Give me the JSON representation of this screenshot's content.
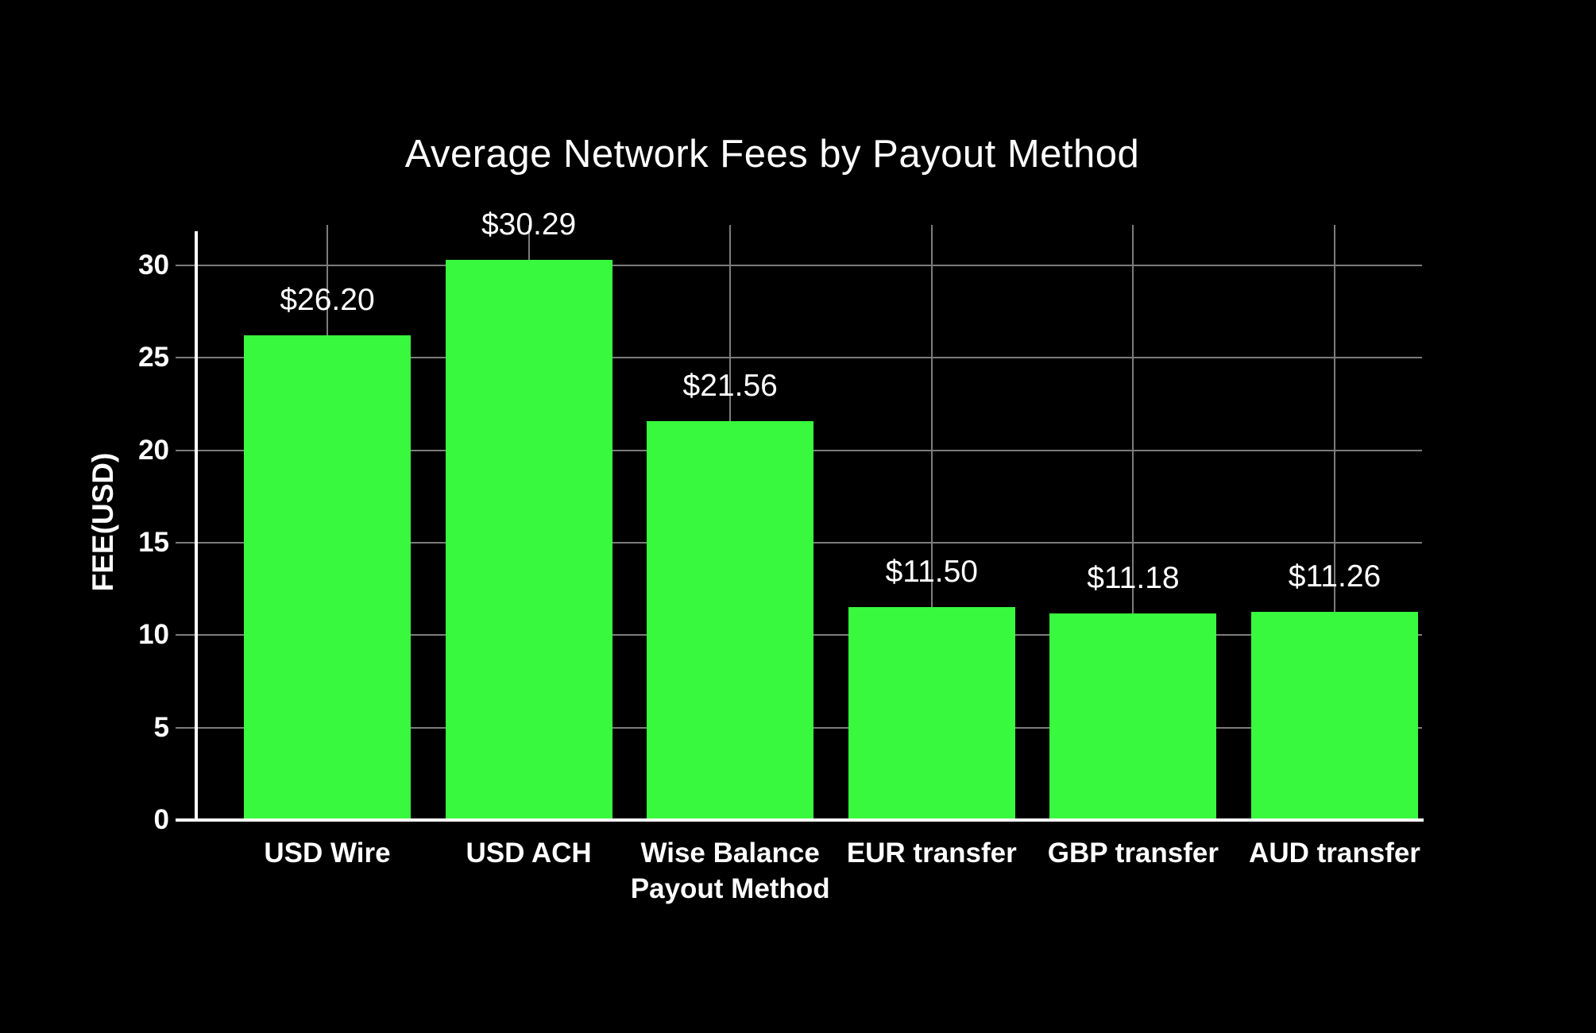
{
  "title": "Average Network Fees by Payout Method",
  "chart_data": {
    "type": "bar",
    "title": "Average Network Fees by Payout Method",
    "xlabel": "",
    "ylabel": "FEE(USD)",
    "categories": [
      "USD Wire",
      "USD ACH",
      "Wise Balance Payout Method",
      "EUR transfer",
      "GBP transfer",
      "AUD transfer"
    ],
    "values": [
      26.2,
      30.29,
      21.56,
      11.5,
      11.18,
      11.26
    ],
    "value_labels": [
      "$26.20",
      "$30.29",
      "$21.56",
      "$11.50",
      "$11.18",
      "$11.26"
    ],
    "y_ticks": [
      0,
      5,
      10,
      15,
      20,
      25,
      30
    ],
    "ylim": [
      0,
      32.2
    ],
    "grid": true,
    "legend": "none",
    "colors": {
      "background": "#000000",
      "bar": "#38F93D",
      "axis": "#FFFFFF",
      "gridline": "#7C7C7C",
      "text": "#FFFFFF"
    }
  }
}
